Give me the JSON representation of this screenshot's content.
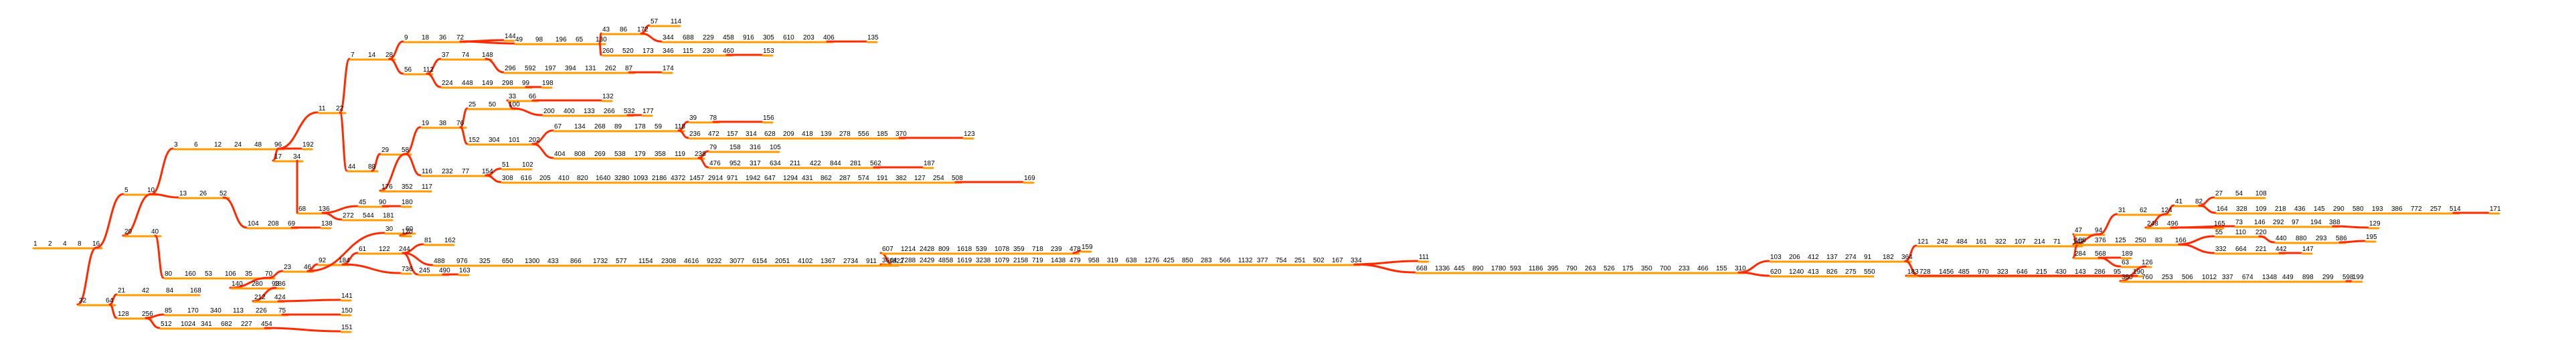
{
  "colors": {
    "edge_primary": "#ff2a00",
    "edge_secondary": "#ff9a00",
    "label": "#000000"
  },
  "chains": [
    {
      "id": "root",
      "labels": [
        "1",
        "2",
        "4",
        "8",
        "16"
      ]
    },
    {
      "id": "c32",
      "labels": [
        "32",
        "64"
      ]
    },
    {
      "id": "c128",
      "labels": [
        "128",
        "256"
      ]
    },
    {
      "id": "c512",
      "labels": [
        "512",
        "1024",
        "341",
        "682",
        "227",
        "454"
      ]
    },
    {
      "id": "c151",
      "labels": [
        "151"
      ]
    },
    {
      "id": "c85",
      "labels": [
        "85",
        "170",
        "340",
        "113",
        "226",
        "75"
      ]
    },
    {
      "id": "c150",
      "labels": [
        "150"
      ]
    },
    {
      "id": "c21",
      "labels": [
        "21",
        "42",
        "84",
        "168"
      ]
    },
    {
      "id": "c5",
      "labels": [
        "5",
        "10"
      ]
    },
    {
      "id": "c20",
      "labels": [
        "20",
        "40"
      ]
    },
    {
      "id": "c80",
      "labels": [
        "80",
        "160",
        "53",
        "106",
        "35",
        "70"
      ]
    },
    {
      "id": "c140",
      "labels": [
        "140",
        "280",
        "93"
      ]
    },
    {
      "id": "c186",
      "labels": [
        "186"
      ]
    },
    {
      "id": "c212",
      "labels": [
        "212",
        "424"
      ]
    },
    {
      "id": "c141",
      "labels": [
        "141"
      ]
    },
    {
      "id": "c23",
      "labels": [
        "23",
        "46"
      ]
    },
    {
      "id": "c92",
      "labels": [
        "92",
        "184"
      ]
    },
    {
      "id": "c61",
      "labels": [
        "61",
        "122",
        "244"
      ]
    },
    {
      "id": "c81",
      "labels": [
        "81",
        "162"
      ]
    },
    {
      "id": "c488",
      "labels": [
        "488",
        "976",
        "325",
        "650",
        "1300",
        "433",
        "866",
        "1732",
        "577",
        "1154",
        "2308",
        "4616",
        "9232",
        "3077",
        "6154",
        "2051",
        "4102",
        "1367",
        "2734",
        "911",
        "1822"
      ]
    },
    {
      "id": "c607",
      "labels": [
        "607",
        "1214",
        "2428",
        "809",
        "1618",
        "539",
        "1078",
        "359",
        "718",
        "239",
        "478"
      ]
    },
    {
      "id": "c159",
      "labels": [
        "159"
      ]
    },
    {
      "id": "c3644",
      "labels": [
        "3644",
        "7288",
        "2429",
        "4858",
        "1619",
        "3238",
        "1079",
        "2158",
        "719",
        "1438",
        "479",
        "958",
        "319",
        "638",
        "1276",
        "425",
        "850",
        "283",
        "566",
        "1132",
        "377",
        "754",
        "251",
        "502",
        "167",
        "334"
      ]
    },
    {
      "id": "c111",
      "labels": [
        "111"
      ]
    },
    {
      "id": "c668",
      "labels": [
        "668",
        "1336",
        "445",
        "890",
        "1780",
        "593",
        "1186",
        "395",
        "790",
        "263",
        "526",
        "175",
        "350",
        "700",
        "233",
        "466",
        "155",
        "310"
      ]
    },
    {
      "id": "c103",
      "labels": [
        "103",
        "206",
        "412",
        "137",
        "274",
        "91",
        "182",
        "364"
      ]
    },
    {
      "id": "c121",
      "labels": [
        "121",
        "242",
        "484",
        "161",
        "322",
        "107",
        "214",
        "71",
        "142"
      ]
    },
    {
      "id": "c47",
      "labels": [
        "47",
        "94"
      ]
    },
    {
      "id": "c31",
      "labels": [
        "31",
        "62",
        "124"
      ]
    },
    {
      "id": "c41",
      "labels": [
        "41",
        "82"
      ]
    },
    {
      "id": "c27",
      "labels": [
        "27",
        "54",
        "108"
      ]
    },
    {
      "id": "c164",
      "labels": [
        "164",
        "328",
        "109",
        "218",
        "436",
        "145",
        "290",
        "580",
        "193",
        "386",
        "772",
        "257",
        "514"
      ]
    },
    {
      "id": "c171",
      "labels": [
        "171"
      ]
    },
    {
      "id": "c248",
      "labels": [
        "248",
        "496"
      ]
    },
    {
      "id": "c165",
      "labels": [
        "165"
      ]
    },
    {
      "id": "c73",
      "labels": [
        "73",
        "146",
        "292",
        "97",
        "194",
        "388"
      ]
    },
    {
      "id": "c129",
      "labels": [
        "129"
      ]
    },
    {
      "id": "c188",
      "labels": [
        "188",
        "376",
        "125",
        "250",
        "83",
        "166"
      ]
    },
    {
      "id": "c55",
      "labels": [
        "55",
        "110",
        "220"
      ]
    },
    {
      "id": "c440",
      "labels": [
        "440",
        "880",
        "293",
        "586"
      ]
    },
    {
      "id": "c195",
      "labels": [
        "195"
      ]
    },
    {
      "id": "c332",
      "labels": [
        "332",
        "664",
        "221",
        "442"
      ]
    },
    {
      "id": "c147",
      "labels": [
        "147"
      ]
    },
    {
      "id": "c284",
      "labels": [
        "284",
        "568"
      ]
    },
    {
      "id": "c189",
      "labels": [
        "189"
      ]
    },
    {
      "id": "c63",
      "labels": [
        "63",
        "126"
      ]
    },
    {
      "id": "c380",
      "labels": [
        "380",
        "760",
        "253",
        "506",
        "1012",
        "337",
        "674",
        "1348",
        "449",
        "898",
        "299",
        "598"
      ]
    },
    {
      "id": "c199",
      "labels": [
        "199"
      ]
    },
    {
      "id": "c728",
      "labels": [
        "728",
        "1456",
        "485",
        "970",
        "323",
        "646",
        "215",
        "430",
        "143",
        "286",
        "95",
        "190"
      ]
    },
    {
      "id": "c183",
      "labels": [
        "183"
      ]
    },
    {
      "id": "c620",
      "labels": [
        "620",
        "1240",
        "413",
        "826",
        "275",
        "550"
      ]
    },
    {
      "id": "c245",
      "labels": [
        "245",
        "490"
      ]
    },
    {
      "id": "c163",
      "labels": [
        "163"
      ]
    },
    {
      "id": "c736",
      "labels": [
        "736"
      ]
    },
    {
      "id": "c30",
      "labels": [
        "30",
        "60"
      ]
    },
    {
      "id": "c120",
      "labels": [
        "120"
      ]
    },
    {
      "id": "c3",
      "labels": [
        "3",
        "6",
        "12",
        "24",
        "48",
        "96"
      ]
    },
    {
      "id": "c192",
      "labels": [
        "192"
      ]
    },
    {
      "id": "c17",
      "labels": [
        "17",
        "34"
      ]
    },
    {
      "id": "c68",
      "labels": [
        "68",
        "136"
      ]
    },
    {
      "id": "c272",
      "labels": [
        "272",
        "544",
        "181"
      ]
    },
    {
      "id": "c45",
      "labels": [
        "45",
        "90"
      ]
    },
    {
      "id": "c180",
      "labels": [
        "180"
      ]
    },
    {
      "id": "c11",
      "labels": [
        "11",
        "22"
      ]
    },
    {
      "id": "c44",
      "labels": [
        "44",
        "88"
      ]
    },
    {
      "id": "c29",
      "labels": [
        "29",
        "58"
      ]
    },
    {
      "id": "c176",
      "labels": [
        "176",
        "352",
        "117"
      ]
    },
    {
      "id": "c116",
      "labels": [
        "116",
        "232",
        "77",
        "154"
      ]
    },
    {
      "id": "c51",
      "labels": [
        "51",
        "102"
      ]
    },
    {
      "id": "c308",
      "labels": [
        "308",
        "616",
        "205",
        "410",
        "820",
        "1640",
        "3280",
        "1093",
        "2186",
        "4372",
        "1457",
        "2914",
        "971",
        "1942",
        "647",
        "1294",
        "431",
        "862",
        "287",
        "574",
        "191",
        "382",
        "127",
        "254",
        "508"
      ]
    },
    {
      "id": "c169",
      "labels": [
        "169"
      ]
    },
    {
      "id": "c19",
      "labels": [
        "19",
        "38",
        "76"
      ]
    },
    {
      "id": "c25",
      "labels": [
        "25",
        "50",
        "100"
      ]
    },
    {
      "id": "c33",
      "labels": [
        "33",
        "66"
      ]
    },
    {
      "id": "c132",
      "labels": [
        "132"
      ]
    },
    {
      "id": "c200",
      "labels": [
        "200",
        "400",
        "133",
        "266",
        "532"
      ]
    },
    {
      "id": "c177",
      "labels": [
        "177"
      ]
    },
    {
      "id": "c152",
      "labels": [
        "152",
        "304",
        "101",
        "202"
      ]
    },
    {
      "id": "c67",
      "labels": [
        "67",
        "134",
        "268",
        "89",
        "178",
        "59",
        "118"
      ]
    },
    {
      "id": "c39",
      "labels": [
        "39",
        "78"
      ]
    },
    {
      "id": "c156",
      "labels": [
        "156"
      ]
    },
    {
      "id": "c236",
      "labels": [
        "236",
        "472",
        "157",
        "314",
        "628",
        "209",
        "418",
        "139",
        "278",
        "556",
        "185",
        "370"
      ]
    },
    {
      "id": "c123",
      "labels": [
        "123"
      ]
    },
    {
      "id": "c404",
      "labels": [
        "404",
        "808",
        "269",
        "538",
        "179",
        "358",
        "119",
        "238"
      ]
    },
    {
      "id": "c79",
      "labels": [
        "79",
        "158",
        "316",
        "105"
      ]
    },
    {
      "id": "c476",
      "labels": [
        "476",
        "952",
        "317",
        "634",
        "211",
        "422",
        "844",
        "281",
        "562"
      ]
    },
    {
      "id": "c187",
      "labels": [
        "187"
      ]
    },
    {
      "id": "c7",
      "labels": [
        "7",
        "14",
        "28"
      ]
    },
    {
      "id": "c9",
      "labels": [
        "9",
        "18",
        "36",
        "72"
      ]
    },
    {
      "id": "c144",
      "labels": [
        "144"
      ]
    },
    {
      "id": "c49",
      "labels": [
        "49",
        "98",
        "196",
        "65",
        "130"
      ]
    },
    {
      "id": "c43",
      "labels": [
        "43",
        "86",
        "172"
      ]
    },
    {
      "id": "c57",
      "labels": [
        "57",
        "114"
      ]
    },
    {
      "id": "c344",
      "labels": [
        "344",
        "688",
        "229",
        "458",
        "916",
        "305",
        "610",
        "203",
        "406"
      ]
    },
    {
      "id": "c135",
      "labels": [
        "135"
      ]
    },
    {
      "id": "c260",
      "labels": [
        "260",
        "520",
        "173",
        "346",
        "115",
        "230",
        "460"
      ]
    },
    {
      "id": "c153",
      "labels": [
        "153"
      ]
    },
    {
      "id": "c56",
      "labels": [
        "56",
        "112"
      ]
    },
    {
      "id": "c37",
      "labels": [
        "37",
        "74",
        "148"
      ]
    },
    {
      "id": "c296",
      "labels": [
        "296",
        "592",
        "197",
        "394",
        "131",
        "262",
        "87"
      ]
    },
    {
      "id": "c174",
      "labels": [
        "174"
      ]
    },
    {
      "id": "c224",
      "labels": [
        "224",
        "448",
        "149",
        "298",
        "99"
      ]
    },
    {
      "id": "c198",
      "labels": [
        "198"
      ]
    },
    {
      "id": "c13",
      "labels": [
        "13",
        "26",
        "52"
      ]
    },
    {
      "id": "c104",
      "labels": [
        "104",
        "208",
        "69"
      ]
    },
    {
      "id": "c138",
      "labels": [
        "138"
      ]
    }
  ]
}
